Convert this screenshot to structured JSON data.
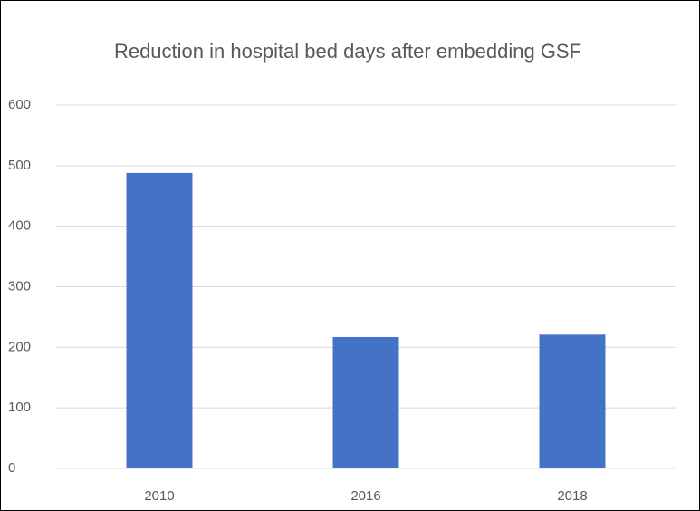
{
  "chart_data": {
    "type": "bar",
    "title": "Reduction in hospital bed days after embedding GSF",
    "categories": [
      "2010",
      "2016",
      "2018"
    ],
    "values": [
      488,
      217,
      221
    ],
    "color": "#4472c4",
    "ylim": [
      0,
      600
    ],
    "yticks": [
      0,
      100,
      200,
      300,
      400,
      500,
      600
    ],
    "grid": true
  }
}
